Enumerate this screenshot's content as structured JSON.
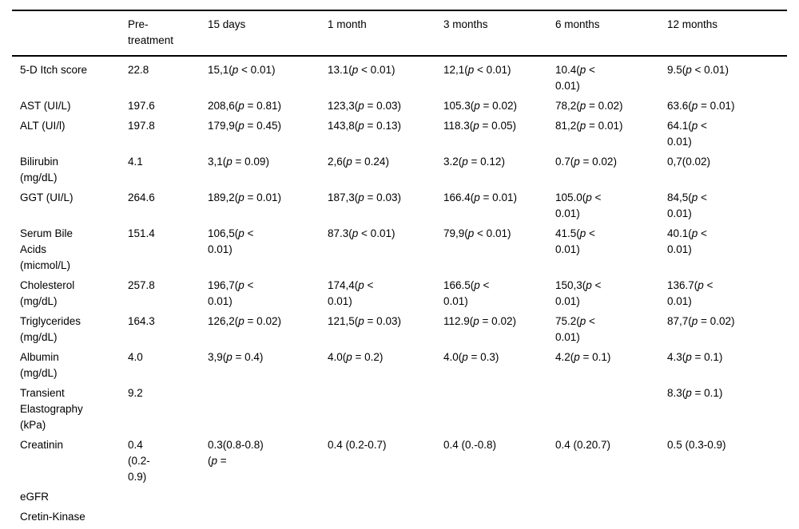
{
  "table": {
    "columns": [
      "",
      "Pre-\ntreatment",
      "15 days",
      "1 month",
      "3 months",
      "6 months",
      "12 months"
    ],
    "rows": [
      {
        "label": "5-D Itch score",
        "cells": [
          "22.8",
          "15,1(p < 0.01)",
          "13.1(p < 0.01)",
          "12,1(p < 0.01)",
          "10.4(p <\n0.01)",
          "9.5(p < 0.01)"
        ]
      },
      {
        "label": "AST (UI/L)",
        "cells": [
          "197.6",
          "208,6(p = 0.81)",
          "123,3(p = 0.03)",
          "105.3(p = 0.02)",
          "78,2(p = 0.02)",
          "63.6(p = 0.01)"
        ]
      },
      {
        "label": "ALT (UI/l)",
        "cells": [
          "197.8",
          "179,9(p = 0.45)",
          "143,8(p = 0.13)",
          "118.3(p = 0.05)",
          "81,2(p = 0.01)",
          "64.1(p <\n0.01)"
        ]
      },
      {
        "label": "Bilirubin\n(mg/dL)",
        "cells": [
          "4.1",
          "3,1(p = 0.09)",
          "2,6(p = 0.24)",
          "3.2(p = 0.12)",
          "0.7(p = 0.02)",
          "0,7(0.02)"
        ]
      },
      {
        "label": "GGT (UI/L)",
        "cells": [
          "264.6",
          "189,2(p = 0.01)",
          "187,3(p = 0.03)",
          "166.4(p = 0.01)",
          "105.0(p <\n0.01)",
          "84,5(p <\n0.01)"
        ]
      },
      {
        "label": "Serum Bile\nAcids\n(micmol/L)",
        "cells": [
          "151.4",
          "106,5(p <\n0.01)",
          "87.3(p < 0.01)",
          "79,9(p < 0.01)",
          "41.5(p <\n0.01)",
          "40.1(p <\n0.01)"
        ]
      },
      {
        "label": "Cholesterol\n(mg/dL)",
        "cells": [
          "257.8",
          "196,7(p <\n0.01)",
          "174,4(p <\n0.01)",
          "166.5(p <\n0.01)",
          "150,3(p <\n0.01)",
          "136.7(p <\n0.01)"
        ]
      },
      {
        "label": "Triglycerides\n(mg/dL)",
        "cells": [
          "164.3",
          "126,2(p = 0.02)",
          "121,5(p = 0.03)",
          "112.9(p = 0.02)",
          "75.2(p <\n0.01)",
          "87,7(p = 0.02)"
        ]
      },
      {
        "label": "Albumin\n(mg/dL)",
        "cells": [
          "4.0",
          "3,9(p = 0.4)",
          "4.0(p = 0.2)",
          "4.0(p = 0.3)",
          "4.2(p = 0.1)",
          "4.3(p = 0.1)"
        ]
      },
      {
        "label": "Transient\nElastography\n(kPa)",
        "cells": [
          "9.2",
          "",
          "",
          "",
          "",
          "8.3(p = 0.1)"
        ]
      },
      {
        "label": "Creatinin",
        "cells": [
          "0.4\n(0.2-\n0.9)",
          "0.3(0.8-0.8)\n(p =",
          "0.4 (0.2-0.7)",
          "0.4 (0.-0.8)",
          "0.4 (0.20.7)",
          "0.5 (0.3-0.9)"
        ]
      },
      {
        "label": "eGFR",
        "cells": [
          "",
          "",
          "",
          "",
          "",
          ""
        ]
      },
      {
        "label": "Cretin-Kinase",
        "cells": [
          "",
          "",
          "",
          "",
          "",
          ""
        ]
      }
    ]
  }
}
